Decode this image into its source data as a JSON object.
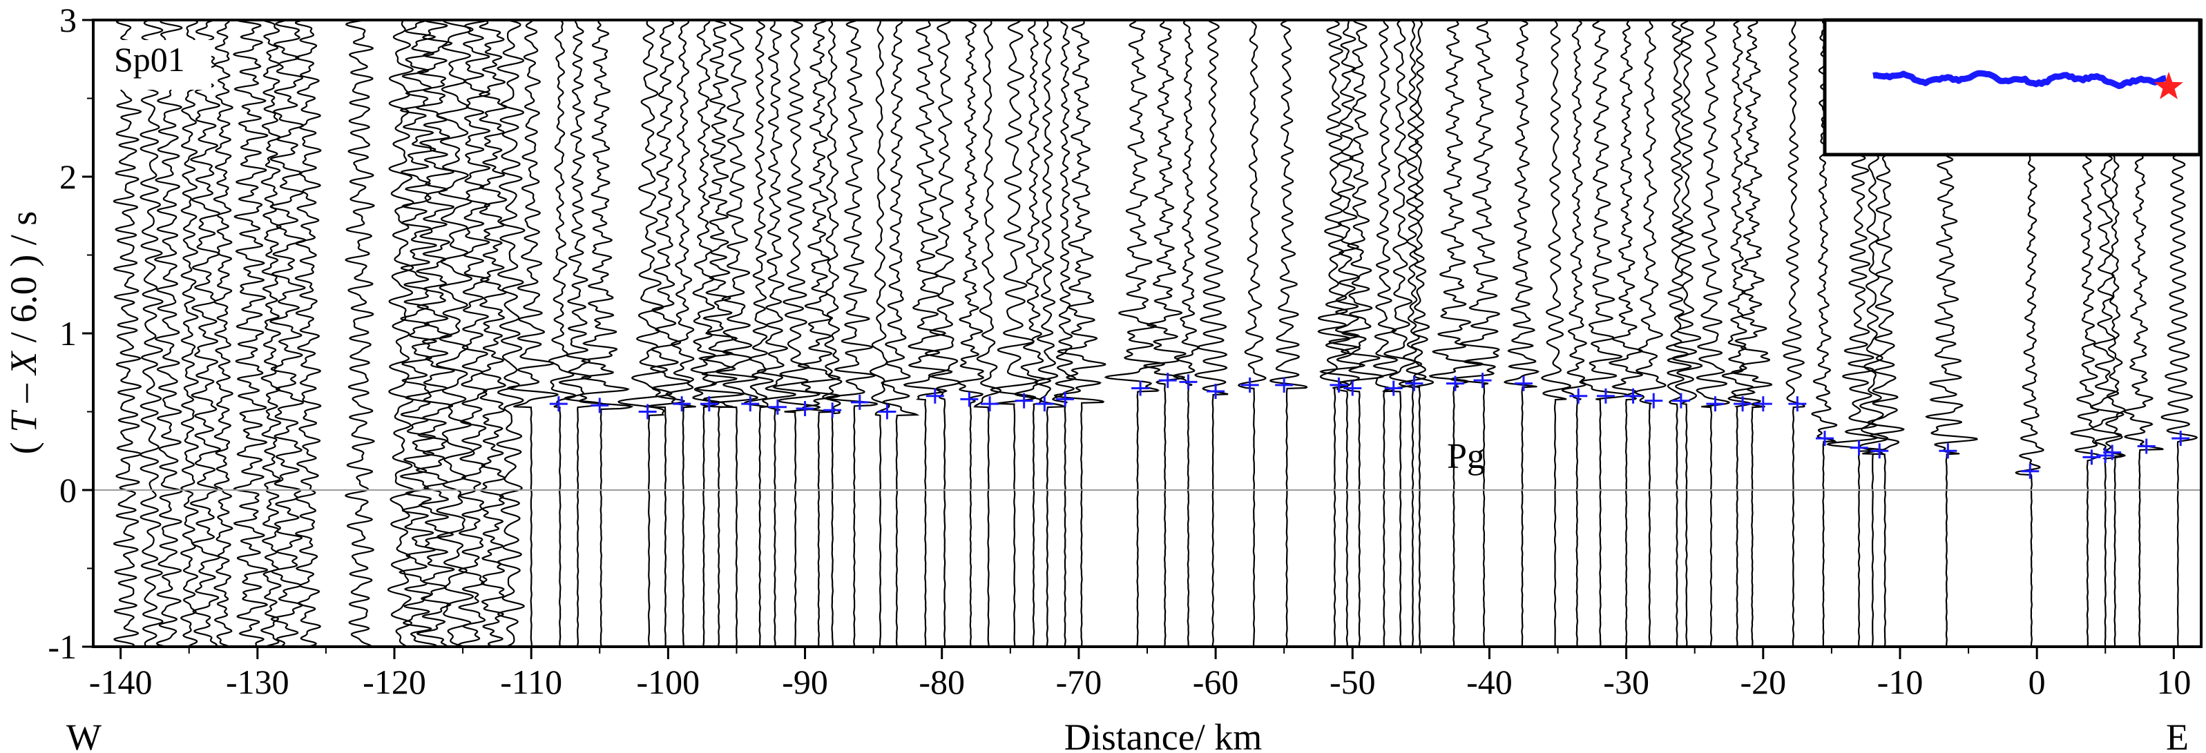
{
  "chart_data": {
    "type": "line",
    "label": "Sp01",
    "phase_label": "Pg",
    "ylabel_prefix": "( ",
    "ylabel_T": "T",
    "ylabel_mid": " – ",
    "ylabel_X": "X",
    "ylabel_suffix": " / 6.0 ) / s",
    "xlabel": "Distance/ km",
    "west_label": "W",
    "east_label": "E",
    "xlim": [
      -142,
      12
    ],
    "ylim": [
      -1,
      3
    ],
    "x_ticks": [
      -140,
      -130,
      -120,
      -110,
      -100,
      -90,
      -80,
      -70,
      -60,
      -50,
      -40,
      -30,
      -20,
      -10,
      0,
      10
    ],
    "x_tick_labels": [
      "-140",
      "-130",
      "-120",
      "-110",
      "-100",
      "-90",
      "-80",
      "-70",
      "-60",
      "-50",
      "-40",
      "-30",
      "-20",
      "-10",
      "0",
      "10"
    ],
    "y_ticks": [
      -1,
      0,
      1,
      2,
      3
    ],
    "y_tick_labels": [
      "-1",
      "0",
      "1",
      "2",
      "3"
    ],
    "reference_line_y": 0,
    "trace_offsets": [
      -139.5,
      -137.8,
      -136.5,
      -135.0,
      -133.8,
      -132.5,
      -130.5,
      -129.0,
      -127.8,
      -126.3,
      -122.5,
      -119.5,
      -118.3,
      -117.0,
      -115.6,
      -114.2,
      -112.8,
      -111.5,
      -110.0,
      -107.9,
      -106.6,
      -104.9,
      -101.4,
      -100.2,
      -98.9,
      -97.4,
      -96.3,
      -95.0,
      -93.3,
      -92.2,
      -90.7,
      -89.0,
      -88.0,
      -86.4,
      -84.5,
      -83.3,
      -81.2,
      -79.8,
      -77.9,
      -76.6,
      -74.7,
      -73.3,
      -72.3,
      -71.0,
      -69.8,
      -65.7,
      -63.7,
      -62.0,
      -60.2,
      -57.2,
      -54.8,
      -51.3,
      -50.4,
      -49.5,
      -47.7,
      -46.5,
      -45.6,
      -45.1,
      -42.6,
      -40.4,
      -37.6,
      -35.2,
      -33.6,
      -31.9,
      -30.0,
      -28.3,
      -26.3,
      -25.6,
      -23.8,
      -21.9,
      -20.8,
      -17.8,
      -15.6,
      -13.0,
      -12.0,
      -11.1,
      -6.6,
      -0.4,
      3.7,
      5.0,
      5.7,
      7.5,
      10.3
    ],
    "pick_x": [
      -108,
      -105,
      -101.5,
      -99,
      -97,
      -94,
      -92,
      -90,
      -88,
      -86,
      -84,
      -80.5,
      -78,
      -76.5,
      -74,
      -72.5,
      -71,
      -65.5,
      -63.5,
      -62,
      -60,
      -57.5,
      -55,
      -51,
      -50,
      -47,
      -45.5,
      -42.5,
      -40.5,
      -37.5,
      -33.5,
      -31.5,
      -29.5,
      -28,
      -26,
      -23.5,
      -21.5,
      -20,
      -17.5,
      -15.5,
      -13,
      -11.5,
      -6.5,
      -0.5,
      4,
      5,
      5.5,
      8,
      10.5
    ],
    "pick_t": [
      0.55,
      0.54,
      0.5,
      0.55,
      0.55,
      0.55,
      0.53,
      0.52,
      0.51,
      0.56,
      0.5,
      0.6,
      0.58,
      0.55,
      0.57,
      0.55,
      0.58,
      0.65,
      0.7,
      0.69,
      0.63,
      0.67,
      0.67,
      0.67,
      0.65,
      0.65,
      0.68,
      0.68,
      0.7,
      0.68,
      0.6,
      0.6,
      0.6,
      0.57,
      0.57,
      0.55,
      0.55,
      0.55,
      0.55,
      0.33,
      0.27,
      0.25,
      0.25,
      0.12,
      0.21,
      0.22,
      0.24,
      0.28,
      0.33
    ],
    "inset": {
      "profile_color": "#1a1aff",
      "star_color": "#ff2020"
    },
    "colors": {
      "trace": "#000000",
      "picks": "#1a1aff",
      "reference": "#9a9a9a"
    }
  }
}
